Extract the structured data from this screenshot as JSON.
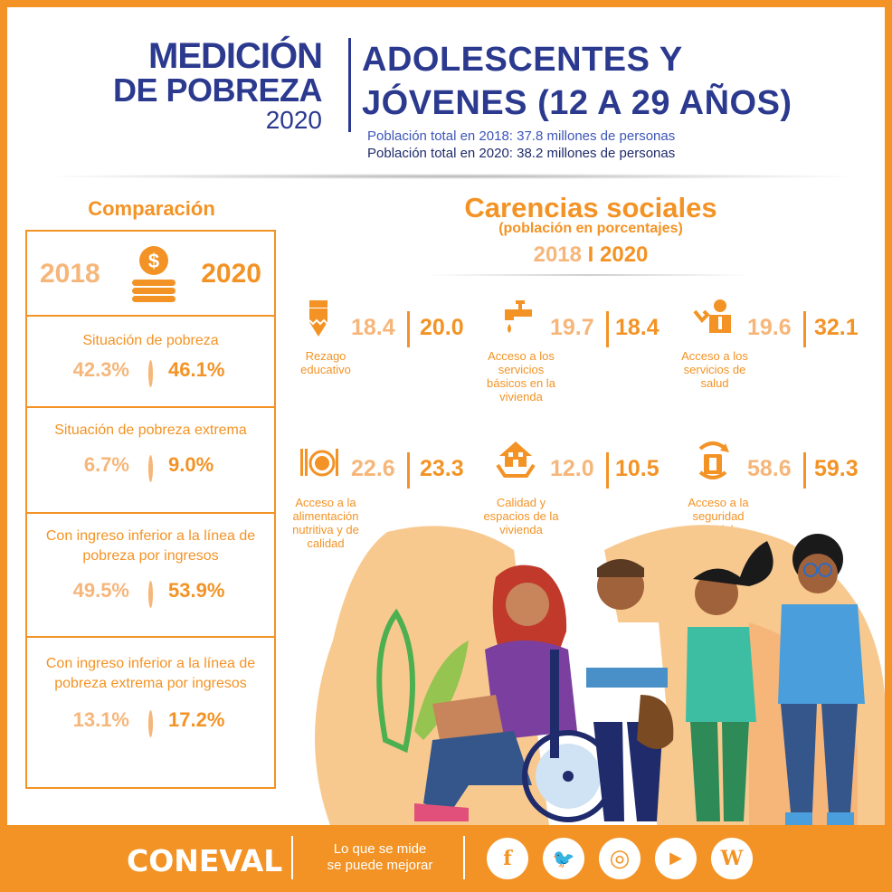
{
  "header": {
    "logo_line1": "MEDICIÓN",
    "logo_line2": "DE POBREZA",
    "logo_year": "2020",
    "title_line1": "ADOLESCENTES Y",
    "title_line2": "JÓVENES (12 A 29 AÑOS)",
    "population_2018": "Población total en 2018: 37.8 millones de personas",
    "population_2020": "Población total en 2020: 38.2 millones de personas"
  },
  "comparison": {
    "title": "Comparación",
    "year_2018": "2018",
    "year_2020": "2020",
    "icon": "coin-stack-icon",
    "rows": [
      {
        "label": "Situación de pobreza",
        "v2018": "42.3%",
        "v2020": "46.1%"
      },
      {
        "label": "Situación de pobreza extrema",
        "v2018": "6.7%",
        "v2020": "9.0%"
      },
      {
        "label": "Con ingreso  inferior a la línea de pobreza  por ingresos",
        "v2018": "49.5%",
        "v2020": "53.9%"
      },
      {
        "label": "Con ingreso inferior a la línea de pobreza extrema por ingresos",
        "v2018": "13.1%",
        "v2020": "17.2%"
      }
    ]
  },
  "carencias": {
    "title": "Carencias sociales",
    "subtitle": "(población en porcentajes)",
    "year_2018": "2018",
    "separator": "I",
    "year_2020": "2020",
    "items": [
      {
        "label": "Rezago educativo",
        "v2018": "18.4",
        "v2020": "20.0",
        "icon": "pencil-icon"
      },
      {
        "label": "Acceso a los servicios básicos en la vivienda",
        "v2018": "19.7",
        "v2020": "18.4",
        "icon": "water-faucet-icon"
      },
      {
        "label": "Acceso a los servicios de salud",
        "v2018": "19.6",
        "v2020": "32.1",
        "icon": "doctor-icon"
      },
      {
        "label": "Acceso a la alimentación nutritiva y de calidad",
        "v2018": "22.6",
        "v2020": "23.3",
        "icon": "plate-cutlery-icon"
      },
      {
        "label": "Calidad y espacios de la vivienda",
        "v2018": "12.0",
        "v2020": "10.5",
        "icon": "house-hands-icon"
      },
      {
        "label": "Acceso a la seguridad social",
        "v2018": "58.6",
        "v2020": "59.3",
        "icon": "social-security-icon"
      }
    ]
  },
  "footer": {
    "brand": "CONEVAL",
    "slogan_line1": "Lo que se mide",
    "slogan_line2": "se puede mejorar",
    "social": [
      {
        "name": "facebook",
        "glyph": "f",
        "icon": "facebook-icon"
      },
      {
        "name": "twitter",
        "glyph": "🐦",
        "icon": "twitter-icon"
      },
      {
        "name": "instagram",
        "glyph": "◎",
        "icon": "instagram-icon"
      },
      {
        "name": "youtube",
        "glyph": "▶",
        "icon": "youtube-icon"
      },
      {
        "name": "wordpress",
        "glyph": "W",
        "icon": "wordpress-icon"
      }
    ]
  },
  "colors": {
    "orange": "#f39325",
    "light_orange": "#f6b67a",
    "navy": "#2b3a8f"
  }
}
